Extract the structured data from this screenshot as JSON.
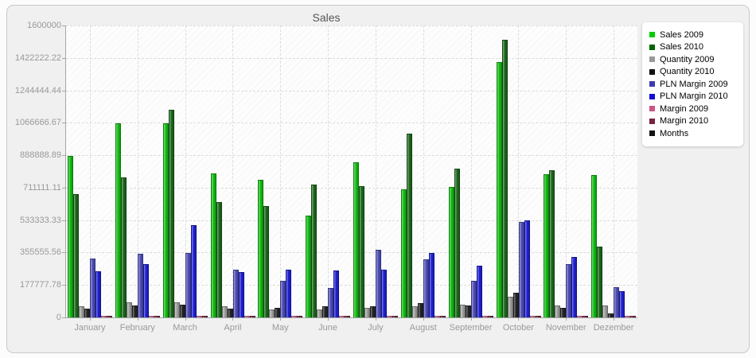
{
  "chart_data": {
    "type": "bar",
    "title": "Sales",
    "xlabel": "",
    "ylabel": "",
    "ylim": [
      0,
      1600000
    ],
    "grid": "dashed-horizontal-and-vertical",
    "legend_position": "right",
    "plot_background": "white-diagonal-hatch",
    "yticks": [
      {
        "label": "1600000",
        "v": 1600000
      },
      {
        "label": "1422222.22",
        "v": 1422222.22
      },
      {
        "label": "1244444.44",
        "v": 1244444.44
      },
      {
        "label": "1066666.67",
        "v": 1066666.67
      },
      {
        "label": "888888.89",
        "v": 888888.89
      },
      {
        "label": "711111.11",
        "v": 711111.11
      },
      {
        "label": "533333.33",
        "v": 533333.33
      },
      {
        "label": "355555.56",
        "v": 355555.56
      },
      {
        "label": "177777.78",
        "v": 177777.78
      },
      {
        "label": "0",
        "v": 0
      }
    ],
    "categories": [
      "January",
      "February",
      "March",
      "April",
      "May",
      "June",
      "July",
      "August",
      "September",
      "October",
      "November",
      "Dezember"
    ],
    "series": [
      {
        "name": "Sales 2009",
        "color": "#12c112",
        "values": [
          885000,
          1065000,
          1065000,
          790000,
          755000,
          560000,
          850000,
          700000,
          717000,
          1400000,
          785000,
          780000
        ]
      },
      {
        "name": "Sales 2010",
        "color": "#1d6b1d",
        "values": [
          675000,
          767000,
          1140000,
          632000,
          610000,
          730000,
          720000,
          1005000,
          815000,
          1520000,
          807000,
          390000
        ]
      },
      {
        "name": "Quantity 2009",
        "color": "#a3a3a3",
        "values": [
          61000,
          83000,
          83000,
          61000,
          44000,
          44000,
          52000,
          61000,
          70000,
          115000,
          65000,
          65000
        ]
      },
      {
        "name": "Quantity 2010",
        "color": "#262626",
        "values": [
          48000,
          65000,
          70000,
          48000,
          54000,
          61000,
          61000,
          78000,
          65000,
          135000,
          52000,
          22000
        ]
      },
      {
        "name": "PLN Margin 2009",
        "color": "#5151bd",
        "values": [
          323000,
          350000,
          353000,
          262000,
          200000,
          163000,
          370000,
          318000,
          200000,
          523000,
          292000,
          165000
        ]
      },
      {
        "name": "PLN Margin 2010",
        "color": "#2121d8",
        "values": [
          253000,
          292000,
          505000,
          249000,
          262000,
          257000,
          262000,
          353000,
          284000,
          530000,
          331000,
          145000
        ]
      },
      {
        "name": "Margin 2009",
        "color": "#dd76a3",
        "values": [
          8000,
          9000,
          9000,
          8000,
          8000,
          8000,
          8000,
          8000,
          8000,
          9000,
          8000,
          6000
        ]
      },
      {
        "name": "Margin 2010",
        "color": "#7c2747",
        "values": [
          4000,
          4000,
          5000,
          4000,
          4000,
          4000,
          6000,
          5000,
          4000,
          6000,
          4000,
          5000
        ]
      }
    ],
    "legend_swatch_colors": [
      "#00cc00",
      "#006600",
      "#999999",
      "#111111",
      "#3c3cb0",
      "#0f0fd6",
      "#cc5588",
      "#772244",
      "#111111"
    ],
    "extra_legend_item": {
      "label": "Months",
      "color": "#111111"
    }
  }
}
